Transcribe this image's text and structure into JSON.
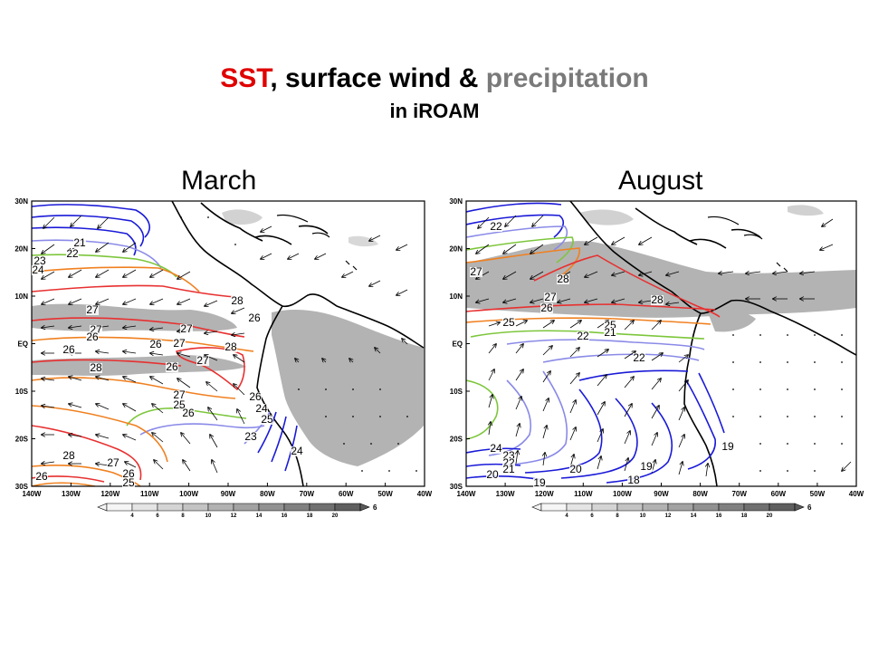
{
  "title": {
    "part1": "SST",
    "part2": ", surface wind & ",
    "part3": "precipitation",
    "line2": "in iROAM"
  },
  "colors": {
    "sst_word": "#e00000",
    "precip_word": "#7a7a7a",
    "warm": "#e83030",
    "orange": "#f08020",
    "green": "#7dc63c",
    "lightblue": "#8a8ae8",
    "blue": "#1a1ad8"
  },
  "panels": [
    {
      "title": "March",
      "lat_ticks": [
        "30N",
        "20N",
        "10N",
        "EQ",
        "10S",
        "20S",
        "30S"
      ],
      "lon_ticks": [
        "140W",
        "130W",
        "120W",
        "110W",
        "100W",
        "90W",
        "80W",
        "70W",
        "60W",
        "50W",
        "40W"
      ],
      "contour_labels": [
        "21",
        "22",
        "23",
        "24",
        "27",
        "27",
        "26",
        "26",
        "26",
        "27",
        "27",
        "28",
        "28",
        "27",
        "26",
        "28",
        "26",
        "27",
        "26",
        "25",
        "24",
        "26",
        "25",
        "23",
        "24",
        "28",
        "27",
        "26",
        "25",
        "26"
      ],
      "colorbar_ticks": [
        "4",
        "6",
        "8",
        "10",
        "12",
        "14",
        "16",
        "18",
        "20"
      ],
      "colorbar_unit": "6"
    },
    {
      "title": "August",
      "lat_ticks": [
        "30N",
        "20N",
        "10N",
        "EQ",
        "10S",
        "20S",
        "30S"
      ],
      "lon_ticks": [
        "140W",
        "130W",
        "120W",
        "110W",
        "100W",
        "90W",
        "80W",
        "70W",
        "60W",
        "50W",
        "40W"
      ],
      "contour_labels": [
        "22",
        "27",
        "28",
        "27",
        "26",
        "28",
        "25",
        "25",
        "22",
        "21",
        "22",
        "24",
        "23",
        "22",
        "21",
        "20",
        "19",
        "20",
        "19",
        "18",
        "19"
      ],
      "colorbar_ticks": [
        "4",
        "6",
        "8",
        "10",
        "12",
        "14",
        "16",
        "18",
        "20"
      ],
      "colorbar_unit": "6"
    }
  ]
}
